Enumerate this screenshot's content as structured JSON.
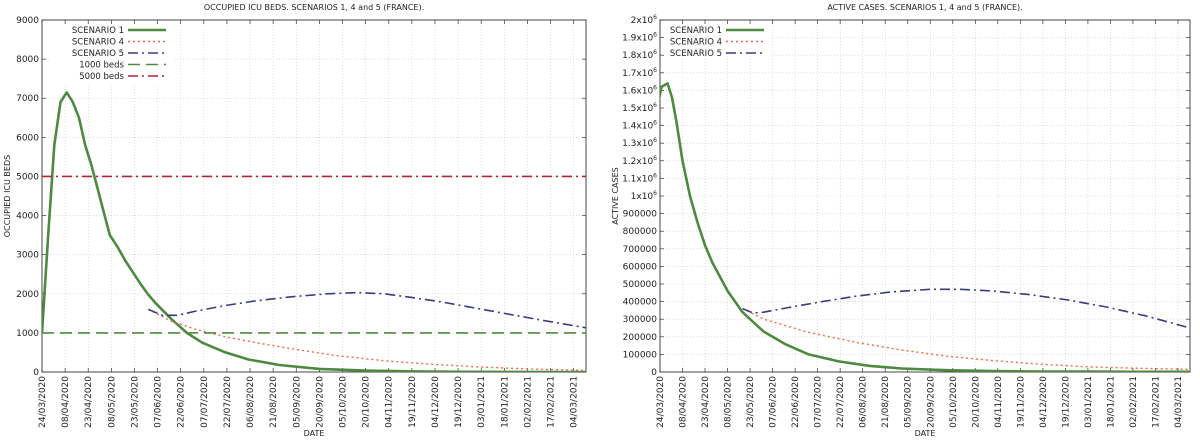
{
  "chart_data": [
    {
      "type": "line",
      "title": "OCCUPIED ICU BEDS. SCENARIOS 1, 4 and 5 (FRANCE).",
      "xlabel": "DATE",
      "ylabel": "OCCUPIED ICU BEDS",
      "x_ticks": [
        "24/03/2020",
        "08/04/2020",
        "23/04/2020",
        "08/05/2020",
        "23/05/2020",
        "07/06/2020",
        "22/06/2020",
        "07/07/2020",
        "22/07/2020",
        "06/08/2020",
        "21/08/2020",
        "05/09/2020",
        "20/09/2020",
        "05/10/2020",
        "20/10/2020",
        "04/11/2020",
        "19/11/2020",
        "04/12/2020",
        "19/12/2020",
        "03/01/2021",
        "18/01/2021",
        "02/02/2021",
        "17/02/2021",
        "04/03/2021"
      ],
      "y_ticks": [
        "0",
        "1000",
        "2000",
        "3000",
        "4000",
        "5000",
        "6000",
        "7000",
        "8000",
        "9000"
      ],
      "xlim": [
        "2020-03-24",
        "2021-03-12"
      ],
      "ylim": [
        0,
        9000
      ],
      "grid": true,
      "legend_position": "top-left",
      "series": [
        {
          "name": "SCENARIO 1",
          "color": "#4d8a3f",
          "style": "solid",
          "x": [
            "2020-03-24",
            "2020-03-28",
            "2020-04-01",
            "2020-04-05",
            "2020-04-09",
            "2020-04-13",
            "2020-04-17",
            "2020-04-21",
            "2020-04-25",
            "2020-04-29",
            "2020-05-03",
            "2020-05-07",
            "2020-05-12",
            "2020-05-17",
            "2020-05-22",
            "2020-05-27",
            "2020-06-01",
            "2020-06-06",
            "2020-06-16",
            "2020-06-26",
            "2020-07-06",
            "2020-07-21",
            "2020-08-05",
            "2020-08-25",
            "2020-09-20",
            "2020-10-20",
            "2020-11-20",
            "2020-12-20",
            "2021-01-20",
            "2021-02-20",
            "2021-03-12"
          ],
          "y": [
            1000,
            3500,
            5800,
            6900,
            7150,
            6900,
            6500,
            5800,
            5300,
            4700,
            4100,
            3500,
            3200,
            2850,
            2550,
            2250,
            1980,
            1750,
            1350,
            1000,
            750,
            500,
            320,
            180,
            80,
            35,
            15,
            5,
            2,
            1,
            0
          ]
        },
        {
          "name": "SCENARIO 4",
          "color": "#f0674a",
          "style": "dotted",
          "x": [
            "2020-06-01",
            "2020-06-16",
            "2020-07-01",
            "2020-07-21",
            "2020-08-10",
            "2020-09-01",
            "2020-10-01",
            "2020-11-01",
            "2020-12-01",
            "2021-01-01",
            "2021-02-01",
            "2021-03-12"
          ],
          "y": [
            1600,
            1300,
            1100,
            900,
            750,
            600,
            420,
            290,
            200,
            130,
            80,
            40
          ]
        },
        {
          "name": "SCENARIO 5",
          "color": "#3b3b80",
          "style": "dashdot",
          "x": [
            "2020-06-01",
            "2020-06-10",
            "2020-06-20",
            "2020-07-01",
            "2020-07-21",
            "2020-08-10",
            "2020-09-01",
            "2020-09-25",
            "2020-10-15",
            "2020-11-01",
            "2020-11-20",
            "2020-12-10",
            "2021-01-01",
            "2021-01-25",
            "2021-02-15",
            "2021-03-12"
          ],
          "y": [
            1600,
            1450,
            1450,
            1550,
            1700,
            1820,
            1920,
            2000,
            2030,
            2000,
            1900,
            1780,
            1620,
            1450,
            1300,
            1130
          ]
        },
        {
          "name": "1000 beds",
          "color": "#4d8a3f",
          "style": "dashed",
          "x": [
            "2020-03-24",
            "2021-03-12"
          ],
          "y": [
            1000,
            1000
          ]
        },
        {
          "name": "5000 beds",
          "color": "#b22234",
          "style": "dashdot",
          "x": [
            "2020-03-24",
            "2021-03-12"
          ],
          "y": [
            5000,
            5000
          ]
        }
      ]
    },
    {
      "type": "line",
      "title": "ACTIVE CASES. SCENARIOS 1, 4 and 5 (FRANCE).",
      "xlabel": "DATE",
      "ylabel": "ACTIVE CASES",
      "x_ticks": [
        "24/03/2020",
        "08/04/2020",
        "23/04/2020",
        "08/05/2020",
        "23/05/2020",
        "07/06/2020",
        "22/06/2020",
        "07/07/2020",
        "22/07/2020",
        "06/08/2020",
        "21/08/2020",
        "05/09/2020",
        "20/09/2020",
        "05/10/2020",
        "20/10/2020",
        "04/11/2020",
        "19/11/2020",
        "04/12/2020",
        "19/12/2020",
        "03/01/2021",
        "18/01/2021",
        "02/02/2021",
        "17/02/2021",
        "04/03/2021"
      ],
      "y_ticks": [
        "0",
        "100000",
        "200000",
        "300000",
        "400000",
        "500000",
        "600000",
        "700000",
        "800000",
        "900000",
        "1x10^6",
        "1.1x10^6",
        "1.2x10^6",
        "1.3x10^6",
        "1.4x10^6",
        "1.5x10^6",
        "1.6x10^6",
        "1.7x10^6",
        "1.8x10^6",
        "1.9x10^6",
        "2x10^6"
      ],
      "xlim": [
        "2020-03-24",
        "2021-03-12"
      ],
      "ylim": [
        0,
        2000000
      ],
      "grid": true,
      "legend_position": "top-left",
      "series": [
        {
          "name": "SCENARIO 1",
          "color": "#4d8a3f",
          "style": "solid",
          "x": [
            "2020-03-21",
            "2020-03-25",
            "2020-03-29",
            "2020-04-01",
            "2020-04-04",
            "2020-04-08",
            "2020-04-13",
            "2020-04-18",
            "2020-04-23",
            "2020-04-28",
            "2020-05-03",
            "2020-05-08",
            "2020-05-13",
            "2020-05-18",
            "2020-05-23",
            "2020-06-01",
            "2020-06-15",
            "2020-07-01",
            "2020-07-21",
            "2020-08-10",
            "2020-09-01",
            "2020-10-01",
            "2020-11-01",
            "2020-12-01",
            "2021-01-01",
            "2021-02-01",
            "2021-03-12"
          ],
          "y": [
            1450000,
            1620000,
            1640000,
            1560000,
            1420000,
            1200000,
            1000000,
            850000,
            720000,
            620000,
            540000,
            460000,
            400000,
            340000,
            300000,
            230000,
            160000,
            100000,
            60000,
            35000,
            20000,
            10000,
            5000,
            3000,
            2000,
            1000,
            1000
          ]
        },
        {
          "name": "SCENARIO 4",
          "color": "#f0674a",
          "style": "dotted",
          "x": [
            "2020-05-18",
            "2020-06-01",
            "2020-07-01",
            "2020-08-01",
            "2020-09-01",
            "2020-10-01",
            "2020-11-01",
            "2020-12-01",
            "2021-01-01",
            "2021-02-01",
            "2021-03-12"
          ],
          "y": [
            360000,
            300000,
            225000,
            170000,
            125000,
            90000,
            65000,
            45000,
            30000,
            22000,
            15000
          ]
        },
        {
          "name": "SCENARIO 5",
          "color": "#3b3b80",
          "style": "dashdot",
          "x": [
            "2020-05-18",
            "2020-05-25",
            "2020-06-01",
            "2020-06-20",
            "2020-07-10",
            "2020-08-01",
            "2020-08-25",
            "2020-09-20",
            "2020-10-10",
            "2020-11-01",
            "2020-11-25",
            "2020-12-20",
            "2021-01-15",
            "2021-02-10",
            "2021-03-12"
          ],
          "y": [
            360000,
            335000,
            340000,
            370000,
            400000,
            430000,
            455000,
            470000,
            470000,
            460000,
            440000,
            410000,
            370000,
            320000,
            250000
          ]
        }
      ]
    }
  ]
}
